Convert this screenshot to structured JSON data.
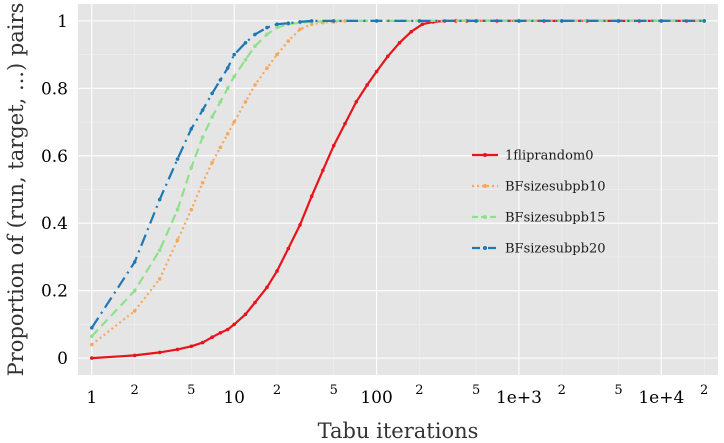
{
  "chart_data": {
    "type": "line",
    "title": "",
    "xlabel": "Tabu iterations",
    "ylabel": "Proportion of (run, target, ...) pairs",
    "x_scale": "log",
    "xlim": [
      0.8,
      25000
    ],
    "ylim": [
      -0.05,
      1.05
    ],
    "grid": true,
    "legend_position": "right",
    "background_color": "#e5e5e5",
    "x_ticks_major": [
      {
        "value": 1,
        "label": "1"
      },
      {
        "value": 10,
        "label": "10"
      },
      {
        "value": 100,
        "label": "100"
      },
      {
        "value": 1000,
        "label": "1e+3"
      },
      {
        "value": 10000,
        "label": "1e+4"
      }
    ],
    "x_ticks_minor": [
      {
        "value": 2,
        "label": "2"
      },
      {
        "value": 5,
        "label": "5"
      },
      {
        "value": 20,
        "label": "2"
      },
      {
        "value": 50,
        "label": "5"
      },
      {
        "value": 200,
        "label": "2"
      },
      {
        "value": 500,
        "label": "5"
      },
      {
        "value": 2000,
        "label": "2"
      },
      {
        "value": 5000,
        "label": "5"
      },
      {
        "value": 20000,
        "label": "2"
      }
    ],
    "y_ticks": [
      {
        "value": 0,
        "label": "0"
      },
      {
        "value": 0.2,
        "label": "0.2"
      },
      {
        "value": 0.4,
        "label": "0.4"
      },
      {
        "value": 0.6,
        "label": "0.6"
      },
      {
        "value": 0.8,
        "label": "0.8"
      },
      {
        "value": 1,
        "label": "1"
      }
    ],
    "series": [
      {
        "name": "1fliprandom0",
        "color": "#e8141c",
        "dash": "solid",
        "x": [
          1,
          2,
          3,
          4,
          5,
          6,
          7,
          8,
          9,
          10,
          12,
          14,
          17,
          20,
          24,
          29,
          35,
          42,
          50,
          60,
          72,
          86,
          100,
          120,
          145,
          175,
          210,
          250,
          300,
          360,
          430,
          500,
          700,
          1000,
          1500,
          2000,
          3000,
          5000,
          7000,
          10000,
          15000,
          20000
        ],
        "y": [
          0.0,
          0.008,
          0.017,
          0.026,
          0.035,
          0.046,
          0.062,
          0.075,
          0.085,
          0.1,
          0.13,
          0.165,
          0.21,
          0.258,
          0.325,
          0.395,
          0.48,
          0.557,
          0.63,
          0.695,
          0.76,
          0.81,
          0.85,
          0.895,
          0.935,
          0.968,
          0.99,
          0.997,
          1,
          1,
          1,
          1,
          1,
          1,
          1,
          1,
          1,
          1,
          1,
          1,
          1,
          1
        ]
      },
      {
        "name": "BFsizesubpb10",
        "color": "#f7a85a",
        "dash": "dotted",
        "x": [
          1,
          2,
          3,
          4,
          5,
          6,
          7,
          8,
          9,
          10,
          12,
          14,
          17,
          20,
          24,
          29,
          35,
          42,
          50,
          60,
          100,
          200,
          500,
          1000,
          2000,
          5000,
          10000,
          20000
        ],
        "y": [
          0.04,
          0.14,
          0.235,
          0.35,
          0.44,
          0.52,
          0.58,
          0.625,
          0.665,
          0.7,
          0.76,
          0.81,
          0.86,
          0.9,
          0.94,
          0.975,
          0.99,
          0.995,
          0.997,
          1,
          1,
          1,
          1,
          1,
          1,
          1,
          1,
          1
        ]
      },
      {
        "name": "BFsizesubpb15",
        "color": "#8fe08a",
        "dash": "long-dash",
        "x": [
          1,
          2,
          3,
          4,
          5,
          6,
          7,
          8,
          9,
          10,
          12,
          14,
          17,
          20,
          24,
          29,
          35,
          50,
          100,
          200,
          500,
          1000,
          2000,
          5000,
          10000,
          20000
        ],
        "y": [
          0.065,
          0.2,
          0.32,
          0.44,
          0.565,
          0.655,
          0.715,
          0.76,
          0.8,
          0.835,
          0.885,
          0.925,
          0.96,
          0.98,
          0.99,
          0.995,
          0.997,
          1,
          1,
          1,
          1,
          1,
          1,
          1,
          1,
          1
        ]
      },
      {
        "name": "BFsizesubpb20",
        "color": "#1f78b4",
        "dash": "dash-dot",
        "x": [
          1,
          2,
          3,
          4,
          5,
          6,
          7,
          8,
          9,
          10,
          12,
          14,
          17,
          20,
          24,
          29,
          35,
          50,
          100,
          200,
          500,
          1000,
          2000,
          5000,
          10000,
          20000
        ],
        "y": [
          0.09,
          0.285,
          0.47,
          0.59,
          0.68,
          0.735,
          0.785,
          0.825,
          0.86,
          0.9,
          0.935,
          0.96,
          0.98,
          0.99,
          0.993,
          0.997,
          1,
          1,
          1,
          1,
          1,
          1,
          1,
          1,
          1,
          1
        ]
      }
    ]
  }
}
